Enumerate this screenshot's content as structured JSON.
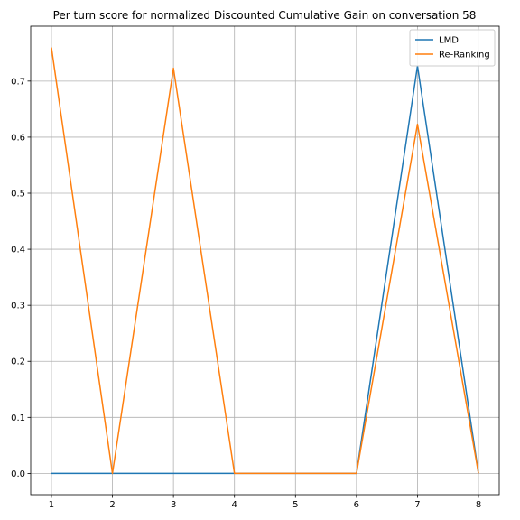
{
  "chart_data": {
    "type": "line",
    "title": "Per turn score for normalized Discounted Cumulative Gain on conversation 58",
    "xlabel": "",
    "ylabel": "",
    "x": [
      1,
      2,
      3,
      4,
      5,
      6,
      7,
      8
    ],
    "xticks": [
      1,
      2,
      3,
      4,
      5,
      6,
      7,
      8
    ],
    "yticks": [
      0.0,
      0.1,
      0.2,
      0.3,
      0.4,
      0.5,
      0.6,
      0.7
    ],
    "ytick_labels": [
      "0.0",
      "0.1",
      "0.2",
      "0.3",
      "0.4",
      "0.5",
      "0.6",
      "0.7"
    ],
    "xlim": [
      0.66,
      8.34
    ],
    "ylim": [
      -0.038,
      0.798
    ],
    "grid": true,
    "legend_position": "top-right",
    "series": [
      {
        "name": "LMD",
        "color": "#1f77b4",
        "values": [
          0,
          0,
          0,
          0,
          0,
          0,
          0.727,
          0
        ]
      },
      {
        "name": "Re-Ranking",
        "color": "#ff7f0e",
        "values": [
          0.76,
          0,
          0.723,
          0,
          0,
          0,
          0.623,
          0
        ]
      }
    ]
  }
}
